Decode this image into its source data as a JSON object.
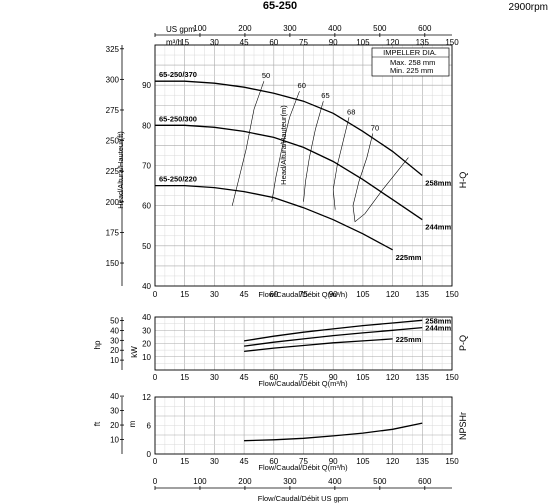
{
  "title": "65-250",
  "speed": "2900rpm",
  "impeller_box": {
    "title": "IMPELLER DIA.",
    "max": "Max.  258  mm",
    "min": "Min.   225  mm"
  },
  "top_axis": {
    "usgpm_label": "US gpm",
    "usgpm_ticks": [
      "0",
      "100",
      "200",
      "300",
      "400",
      "500",
      "600"
    ],
    "m3h_label": "m³/h",
    "m3h_ticks": [
      "0",
      "15",
      "30",
      "45",
      "60",
      "75",
      "90",
      "105",
      "120",
      "135",
      "150"
    ]
  },
  "bottom_axis": {
    "usgpm_label": "Flow/Caudal/Débit  US gpm",
    "usgpm_ticks": [
      "0",
      "100",
      "200",
      "300",
      "400",
      "500",
      "600"
    ]
  },
  "side_labels": {
    "hq": "H-Q",
    "pq": "P-Q",
    "npsh": "NPSHr"
  },
  "chart_data": [
    {
      "type": "line",
      "title": "H-Q",
      "xlabel": "Flow/Caudal/Débit Q(m³/h)",
      "ylabel": "Head/Altura/Hauteur(m)",
      "ylabel2": "Head/Altura/Hauteur(ft)",
      "xlim": [
        0,
        150
      ],
      "ylim": [
        40,
        100
      ],
      "xticks": [
        "0",
        "15",
        "30",
        "45",
        "60",
        "75",
        "90",
        "105",
        "120",
        "135",
        "150"
      ],
      "yticks": [
        "40",
        "50",
        "60",
        "70",
        "80",
        "90"
      ],
      "ft_ticks": [
        "150",
        "175",
        "200",
        "225",
        "250",
        "275",
        "300",
        "325"
      ],
      "series": [
        {
          "name": "65-250/370",
          "end_label": "258mm",
          "points": [
            [
              0,
              91
            ],
            [
              15,
              91
            ],
            [
              30,
              90.5
            ],
            [
              45,
              89.5
            ],
            [
              60,
              88
            ],
            [
              75,
              86
            ],
            [
              90,
              83
            ],
            [
              105,
              78.5
            ],
            [
              120,
              73.5
            ],
            [
              135,
              67.5
            ]
          ]
        },
        {
          "name": "65-250/300",
          "end_label": "244mm",
          "points": [
            [
              0,
              80
            ],
            [
              15,
              80
            ],
            [
              30,
              79.5
            ],
            [
              45,
              78.5
            ],
            [
              60,
              77
            ],
            [
              75,
              74.5
            ],
            [
              90,
              71
            ],
            [
              105,
              66.5
            ],
            [
              120,
              61.5
            ],
            [
              135,
              56.5
            ]
          ]
        },
        {
          "name": "65-250/220",
          "end_label": "225mm",
          "points": [
            [
              0,
              65
            ],
            [
              15,
              65
            ],
            [
              30,
              64.5
            ],
            [
              45,
              63.5
            ],
            [
              60,
              62
            ],
            [
              75,
              59.5
            ],
            [
              90,
              56.5
            ],
            [
              105,
              53
            ],
            [
              120,
              49
            ]
          ]
        }
      ],
      "efficiency": [
        {
          "label": "50",
          "points": [
            [
              55,
              91
            ],
            [
              50,
              84
            ],
            [
              46,
              74
            ],
            [
              42,
              66
            ],
            [
              39,
              60
            ]
          ]
        },
        {
          "label": "60",
          "points": [
            [
              73,
              88.5
            ],
            [
              68,
              82
            ],
            [
              64,
              74
            ],
            [
              61,
              67
            ],
            [
              59,
              61
            ]
          ]
        },
        {
          "label": "65",
          "points": [
            [
              85,
              86
            ],
            [
              81,
              79
            ],
            [
              78,
              72
            ],
            [
              76,
              66
            ],
            [
              75,
              61
            ]
          ]
        },
        {
          "label": "68",
          "points": [
            [
              98,
              82
            ],
            [
              95,
              76
            ],
            [
              92,
              70
            ],
            [
              90,
              64
            ],
            [
              91,
              59
            ]
          ]
        },
        {
          "label": "70",
          "points": [
            [
              110,
              78
            ],
            [
              107,
              72
            ],
            [
              103,
              66
            ],
            [
              100,
              60
            ],
            [
              101,
              56
            ],
            [
              106,
              58
            ],
            [
              115,
              64
            ],
            [
              128,
              72
            ]
          ]
        }
      ]
    },
    {
      "type": "line",
      "title": "P-Q",
      "xlabel": "Flow/Caudal/Débit Q(m³/h)",
      "ylabel": "kW",
      "ylabel2": "hp",
      "xlim": [
        0,
        150
      ],
      "ylim": [
        0,
        40
      ],
      "yticks": [
        "10",
        "20",
        "30",
        "40"
      ],
      "hp_ticks": [
        "10",
        "20",
        "30",
        "40",
        "50"
      ],
      "series": [
        {
          "name": "258mm",
          "points": [
            [
              45,
              22
            ],
            [
              60,
              25.5
            ],
            [
              75,
              28.5
            ],
            [
              90,
              31
            ],
            [
              105,
              33.5
            ],
            [
              120,
              35.5
            ],
            [
              135,
              37.5
            ]
          ]
        },
        {
          "name": "244mm",
          "points": [
            [
              45,
              18
            ],
            [
              60,
              21
            ],
            [
              75,
              23.5
            ],
            [
              90,
              26
            ],
            [
              105,
              28
            ],
            [
              120,
              30
            ],
            [
              135,
              32
            ]
          ]
        },
        {
          "name": "225mm",
          "points": [
            [
              45,
              14
            ],
            [
              60,
              16.5
            ],
            [
              75,
              18.5
            ],
            [
              90,
              20.5
            ],
            [
              105,
              22
            ],
            [
              120,
              23.5
            ]
          ]
        }
      ]
    },
    {
      "type": "line",
      "title": "NPSHr",
      "xlabel": "Flow/Caudal/Débit Q(m³/h)",
      "ylabel": "m",
      "ylabel2": "ft",
      "xlim": [
        0,
        150
      ],
      "ylim": [
        0,
        12
      ],
      "yticks": [
        "0",
        "6",
        "12"
      ],
      "ft_ticks": [
        "10",
        "20",
        "30",
        "40"
      ],
      "series": [
        {
          "name": "NPSHr",
          "points": [
            [
              45,
              2.8
            ],
            [
              60,
              3
            ],
            [
              75,
              3.3
            ],
            [
              90,
              3.8
            ],
            [
              105,
              4.4
            ],
            [
              120,
              5.2
            ],
            [
              135,
              6.5
            ]
          ]
        }
      ]
    }
  ]
}
